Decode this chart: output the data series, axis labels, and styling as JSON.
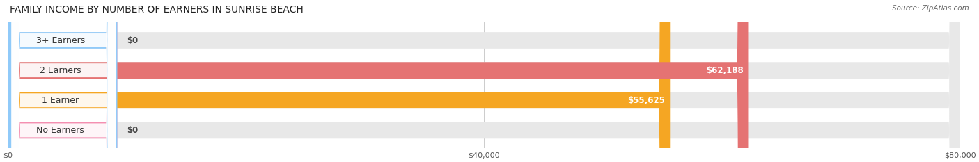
{
  "title": "FAMILY INCOME BY NUMBER OF EARNERS IN SUNRISE BEACH",
  "source_text": "Source: ZipAtlas.com",
  "categories": [
    "No Earners",
    "1 Earner",
    "2 Earners",
    "3+ Earners"
  ],
  "values": [
    0,
    55625,
    62188,
    0
  ],
  "bar_colors": [
    "#f48fb1",
    "#f5a623",
    "#e57373",
    "#90caf9"
  ],
  "label_colors": [
    "#f48fb1",
    "#f5a623",
    "#e57373",
    "#90caf9"
  ],
  "bar_bg_color": "#f0f0f0",
  "value_labels": [
    "$0",
    "$55,625",
    "$62,188",
    "$0"
  ],
  "xlim": [
    0,
    80000
  ],
  "xticks": [
    0,
    40000,
    80000
  ],
  "xtick_labels": [
    "$0",
    "$40,000",
    "$80,000"
  ],
  "figsize": [
    14.06,
    2.33
  ],
  "dpi": 100,
  "background_color": "#ffffff",
  "title_fontsize": 10,
  "label_fontsize": 9,
  "value_fontsize": 8.5
}
